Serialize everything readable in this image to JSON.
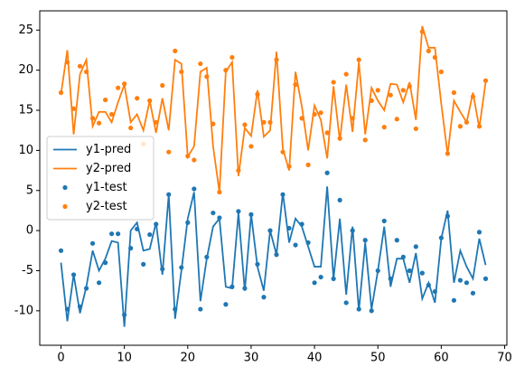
{
  "chart_data": {
    "type": "line",
    "x": [
      0,
      1,
      2,
      3,
      4,
      5,
      6,
      7,
      8,
      9,
      10,
      11,
      12,
      13,
      14,
      15,
      16,
      17,
      18,
      19,
      20,
      21,
      22,
      23,
      24,
      25,
      26,
      27,
      28,
      29,
      30,
      31,
      32,
      33,
      34,
      35,
      36,
      37,
      38,
      39,
      40,
      41,
      42,
      43,
      44,
      45,
      46,
      47,
      48,
      49,
      50,
      51,
      52,
      53,
      54,
      55,
      56,
      57,
      58,
      59,
      60,
      61,
      62,
      63,
      64,
      65,
      66,
      67
    ],
    "series": [
      {
        "name": "y1-pred",
        "mark": "line",
        "color": "#1f77b4",
        "values": [
          -4,
          -11.3,
          -5.5,
          -10.3,
          -7,
          -2.5,
          -5,
          -3.5,
          -1.3,
          -1.5,
          -12,
          0,
          1,
          -2.5,
          -2.3,
          1,
          -5.5,
          4.5,
          -11,
          -5,
          1.5,
          4.8,
          -8.8,
          -3.5,
          0.5,
          1.5,
          -7,
          -7.2,
          2.2,
          -7.5,
          2,
          -4.5,
          -7.5,
          0,
          -3,
          4.7,
          -1.5,
          1.5,
          0.5,
          -2,
          -4.5,
          -4.5,
          5.5,
          -6,
          1.5,
          -8,
          0.5,
          -10,
          -1.5,
          -9.8,
          -5,
          0.5,
          -7,
          -3.5,
          -3.5,
          -6.5,
          -2.8,
          -8.5,
          -6.5,
          -9,
          -1,
          2.5,
          -6.5,
          -2.5,
          -4.5,
          -6,
          -1,
          -4.3
        ]
      },
      {
        "name": "y2-pred",
        "mark": "line",
        "color": "#ff7f0e",
        "values": [
          17,
          22.5,
          12,
          19.5,
          21.3,
          13,
          14.8,
          14.8,
          13.5,
          16,
          18.2,
          13.5,
          14.5,
          12.5,
          16.2,
          12.2,
          16.5,
          12.5,
          21.3,
          20.8,
          9.2,
          10.5,
          19.8,
          20.3,
          10.5,
          4.8,
          19.8,
          21,
          6.8,
          12.8,
          11.8,
          17.5,
          11.7,
          12.5,
          22.3,
          10.2,
          7.5,
          19.8,
          15.5,
          10,
          15.6,
          13.8,
          9,
          18,
          11.2,
          18.2,
          12.3,
          21,
          12,
          17.8,
          16.2,
          15,
          18.3,
          18.2,
          16,
          18.5,
          13.8,
          25.5,
          22.8,
          22.8,
          15.8,
          9.5,
          16.2,
          14.8,
          13.5,
          17.2,
          12.8,
          18.5
        ]
      },
      {
        "name": "y1-test",
        "mark": "point",
        "color": "#1f77b4",
        "values": [
          -2.5,
          -9.8,
          -5.5,
          -9.5,
          -7.2,
          -1.6,
          -6.5,
          -4,
          -0.4,
          -0.4,
          -10.5,
          -2.2,
          0.2,
          -4.2,
          -0.5,
          0.8,
          -4.8,
          4.5,
          -9.8,
          -4.6,
          1,
          5.2,
          -9.8,
          -3.3,
          2.2,
          1.6,
          -9.2,
          -7,
          2.4,
          -7.2,
          2,
          -4.2,
          -8.3,
          0,
          -3,
          4.5,
          0.3,
          -1.8,
          0.8,
          -1.5,
          -6.5,
          -5.8,
          7.2,
          -6,
          3.8,
          -9,
          0,
          -9.8,
          -1.2,
          -10,
          -5,
          1.2,
          -6,
          -1.2,
          -3.3,
          -5,
          -2,
          -5.3,
          -6.8,
          -7.6,
          -0.9,
          1.8,
          -8.7,
          -6.2,
          -6.5,
          -7.8,
          -0.2,
          -6
        ]
      },
      {
        "name": "y2-test",
        "mark": "point",
        "color": "#ff7f0e",
        "values": [
          17.2,
          21,
          15.2,
          20.5,
          19.8,
          14,
          13.4,
          16.3,
          14.5,
          17.8,
          18.3,
          12.8,
          16.5,
          10.8,
          16.2,
          13.5,
          18.1,
          9.8,
          22.4,
          19.8,
          9.3,
          8.8,
          20.8,
          19.2,
          13.3,
          4.8,
          20,
          21.6,
          7.5,
          13.2,
          10.5,
          17,
          13.5,
          13.5,
          21.3,
          9.8,
          8,
          18.2,
          14,
          8.2,
          14.5,
          14.7,
          12.2,
          18.5,
          11.5,
          19.5,
          14,
          21.3,
          11.3,
          16.2,
          17.5,
          12.9,
          16.9,
          13.9,
          17.5,
          18,
          12.7,
          24.8,
          22.4,
          21.6,
          19.8,
          9.6,
          17.2,
          13,
          13.5,
          16.7,
          13,
          18.7
        ]
      }
    ],
    "xlim": [
      -3.35,
      70.35
    ],
    "xticks": [
      0,
      10,
      20,
      30,
      40,
      50,
      60,
      70
    ],
    "ylim": [
      -14.3,
      27.4
    ],
    "yticks": [
      -10,
      -5,
      0,
      5,
      10,
      15,
      20,
      25
    ],
    "legend": "center left"
  }
}
